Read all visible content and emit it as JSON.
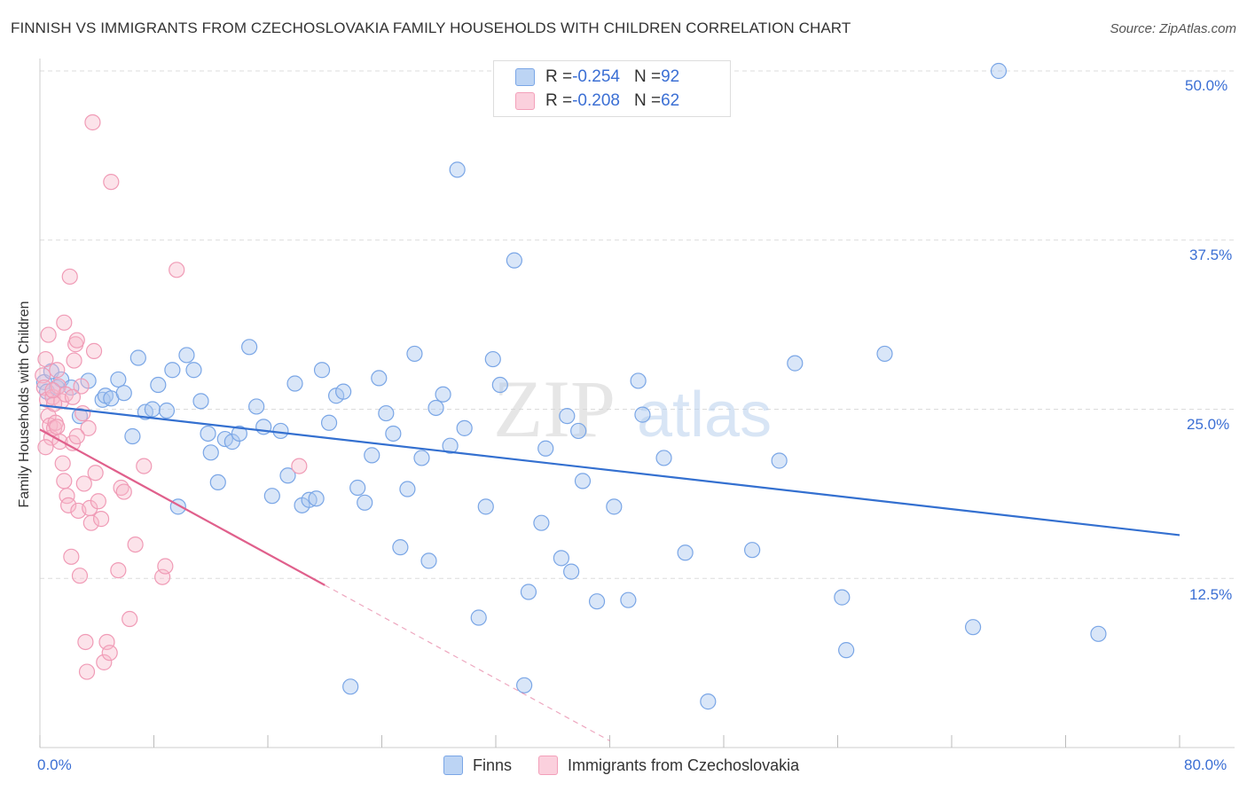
{
  "title": "FINNISH VS IMMIGRANTS FROM CZECHOSLOVAKIA FAMILY HOUSEHOLDS WITH CHILDREN CORRELATION CHART",
  "source": "Source: ZipAtlas.com",
  "watermark": {
    "zip": "ZIP",
    "atlas": "atlas"
  },
  "legend": {
    "rows": [
      {
        "r_label": "R = ",
        "r_value": "-0.254",
        "n_label": "N = ",
        "n_value": "92",
        "color": "#a9c8f0"
      },
      {
        "r_label": "R = ",
        "r_value": "-0.208",
        "n_label": "N = ",
        "n_value": "62",
        "color": "#f7b8cb"
      }
    ]
  },
  "bottom_legend": {
    "finns": "Finns",
    "czech": "Immigrants from Czechoslovakia"
  },
  "axis_labels": {
    "y": "Family Households with Children",
    "x_min": "0.0%",
    "x_max": "80.0%",
    "y_ticks": [
      "50.0%",
      "37.5%",
      "25.0%",
      "12.5%"
    ]
  },
  "chart_data": {
    "type": "scatter",
    "title": "FINNISH VS IMMIGRANTS FROM CZECHOSLOVAKIA FAMILY HOUSEHOLDS WITH CHILDREN CORRELATION CHART",
    "xlabel": "",
    "ylabel": "Family Households with Children",
    "xlim": [
      0,
      80
    ],
    "ylim": [
      0,
      50
    ],
    "y_gridlines": [
      12.5,
      25,
      37.5,
      50
    ],
    "series": [
      {
        "name": "Finns",
        "color": "#7aa6e6",
        "line_color": "#3470d0",
        "R": -0.254,
        "N": 92,
        "trend": {
          "x": [
            0,
            80
          ],
          "y": [
            25.3,
            15.7
          ]
        },
        "points": [
          [
            0.3,
            27.0
          ],
          [
            0.5,
            26.3
          ],
          [
            0.8,
            27.8
          ],
          [
            1.2,
            26.6
          ],
          [
            1.5,
            27.2
          ],
          [
            2.2,
            26.6
          ],
          [
            2.8,
            24.5
          ],
          [
            3.4,
            27.1
          ],
          [
            4.4,
            25.7
          ],
          [
            4.6,
            26.0
          ],
          [
            5.0,
            25.8
          ],
          [
            5.5,
            27.2
          ],
          [
            5.9,
            26.2
          ],
          [
            6.5,
            23.0
          ],
          [
            6.9,
            28.8
          ],
          [
            7.4,
            24.8
          ],
          [
            7.9,
            25.0
          ],
          [
            8.3,
            26.8
          ],
          [
            8.9,
            24.9
          ],
          [
            9.3,
            27.9
          ],
          [
            9.7,
            17.8
          ],
          [
            10.3,
            29.0
          ],
          [
            10.8,
            27.9
          ],
          [
            11.3,
            25.6
          ],
          [
            11.8,
            23.2
          ],
          [
            12.0,
            21.8
          ],
          [
            12.5,
            19.6
          ],
          [
            13.0,
            22.8
          ],
          [
            13.5,
            22.6
          ],
          [
            14.0,
            23.2
          ],
          [
            14.7,
            29.6
          ],
          [
            15.2,
            25.2
          ],
          [
            15.7,
            23.7
          ],
          [
            16.3,
            18.6
          ],
          [
            16.9,
            23.4
          ],
          [
            17.4,
            20.1
          ],
          [
            17.9,
            26.9
          ],
          [
            18.4,
            17.9
          ],
          [
            18.9,
            18.3
          ],
          [
            19.4,
            18.4
          ],
          [
            19.8,
            27.9
          ],
          [
            20.3,
            24.0
          ],
          [
            20.8,
            26.0
          ],
          [
            21.3,
            26.3
          ],
          [
            21.8,
            4.5
          ],
          [
            22.3,
            19.2
          ],
          [
            22.8,
            18.1
          ],
          [
            23.3,
            21.6
          ],
          [
            23.8,
            27.3
          ],
          [
            24.3,
            24.7
          ],
          [
            24.8,
            23.2
          ],
          [
            25.3,
            14.8
          ],
          [
            25.8,
            19.1
          ],
          [
            26.3,
            29.1
          ],
          [
            26.8,
            21.4
          ],
          [
            27.3,
            13.8
          ],
          [
            27.8,
            25.1
          ],
          [
            28.3,
            26.1
          ],
          [
            28.8,
            22.3
          ],
          [
            29.3,
            42.7
          ],
          [
            29.8,
            23.6
          ],
          [
            30.8,
            9.6
          ],
          [
            31.3,
            17.8
          ],
          [
            31.8,
            28.7
          ],
          [
            32.3,
            26.8
          ],
          [
            33.3,
            36.0
          ],
          [
            34.0,
            4.6
          ],
          [
            34.3,
            11.5
          ],
          [
            35.2,
            16.6
          ],
          [
            35.5,
            22.1
          ],
          [
            36.6,
            14.0
          ],
          [
            37.0,
            24.5
          ],
          [
            37.8,
            23.4
          ],
          [
            37.3,
            13.0
          ],
          [
            38.1,
            19.7
          ],
          [
            39.1,
            10.8
          ],
          [
            40.3,
            17.8
          ],
          [
            41.3,
            10.9
          ],
          [
            42.0,
            27.1
          ],
          [
            42.3,
            24.6
          ],
          [
            43.8,
            21.4
          ],
          [
            45.3,
            14.4
          ],
          [
            46.9,
            3.4
          ],
          [
            50.0,
            14.6
          ],
          [
            51.9,
            21.2
          ],
          [
            53.0,
            28.4
          ],
          [
            56.3,
            11.1
          ],
          [
            56.6,
            7.2
          ],
          [
            59.3,
            29.1
          ],
          [
            65.5,
            8.9
          ],
          [
            67.3,
            50.0
          ],
          [
            74.3,
            8.4
          ]
        ]
      },
      {
        "name": "Immigrants from Czechoslovakia",
        "color": "#f3a0ba",
        "line_color": "#e0608c",
        "R": -0.208,
        "N": 62,
        "trend": {
          "x": [
            0,
            20
          ],
          "y": [
            23.5,
            12.0
          ]
        },
        "trend_dashed": {
          "x": [
            20,
            40
          ],
          "y": [
            12.0,
            0.5
          ]
        },
        "points": [
          [
            0.2,
            27.5
          ],
          [
            0.3,
            26.6
          ],
          [
            0.4,
            28.7
          ],
          [
            0.5,
            25.7
          ],
          [
            0.6,
            24.5
          ],
          [
            0.7,
            23.8
          ],
          [
            0.8,
            22.9
          ],
          [
            0.9,
            25.9
          ],
          [
            1.0,
            23.6
          ],
          [
            1.1,
            24.0
          ],
          [
            1.2,
            27.9
          ],
          [
            1.3,
            26.7
          ],
          [
            1.4,
            22.6
          ],
          [
            1.5,
            25.6
          ],
          [
            1.6,
            21.0
          ],
          [
            1.7,
            19.7
          ],
          [
            1.8,
            26.1
          ],
          [
            1.9,
            18.6
          ],
          [
            2.0,
            17.9
          ],
          [
            2.1,
            34.8
          ],
          [
            2.2,
            14.1
          ],
          [
            2.3,
            22.5
          ],
          [
            2.4,
            28.6
          ],
          [
            2.5,
            29.8
          ],
          [
            2.6,
            30.1
          ],
          [
            2.7,
            17.5
          ],
          [
            2.8,
            12.7
          ],
          [
            2.9,
            26.7
          ],
          [
            3.0,
            24.7
          ],
          [
            3.1,
            19.5
          ],
          [
            3.2,
            7.8
          ],
          [
            3.3,
            5.6
          ],
          [
            3.4,
            23.6
          ],
          [
            3.5,
            17.7
          ],
          [
            3.6,
            16.6
          ],
          [
            3.7,
            46.2
          ],
          [
            3.9,
            20.3
          ],
          [
            4.1,
            18.2
          ],
          [
            4.3,
            16.9
          ],
          [
            4.5,
            6.3
          ],
          [
            4.7,
            7.8
          ],
          [
            4.9,
            7.0
          ],
          [
            5.0,
            41.8
          ],
          [
            5.5,
            13.1
          ],
          [
            5.7,
            19.2
          ],
          [
            5.9,
            18.9
          ],
          [
            6.3,
            9.5
          ],
          [
            6.7,
            15.0
          ],
          [
            7.3,
            20.8
          ],
          [
            8.6,
            12.6
          ],
          [
            8.8,
            13.4
          ],
          [
            9.6,
            35.3
          ],
          [
            18.2,
            20.8
          ],
          [
            1.0,
            25.4
          ],
          [
            1.2,
            23.7
          ],
          [
            0.9,
            26.4
          ],
          [
            0.6,
            30.5
          ],
          [
            1.7,
            31.4
          ],
          [
            2.3,
            25.9
          ],
          [
            3.8,
            29.3
          ],
          [
            0.4,
            22.2
          ],
          [
            2.6,
            23.0
          ]
        ]
      }
    ]
  }
}
